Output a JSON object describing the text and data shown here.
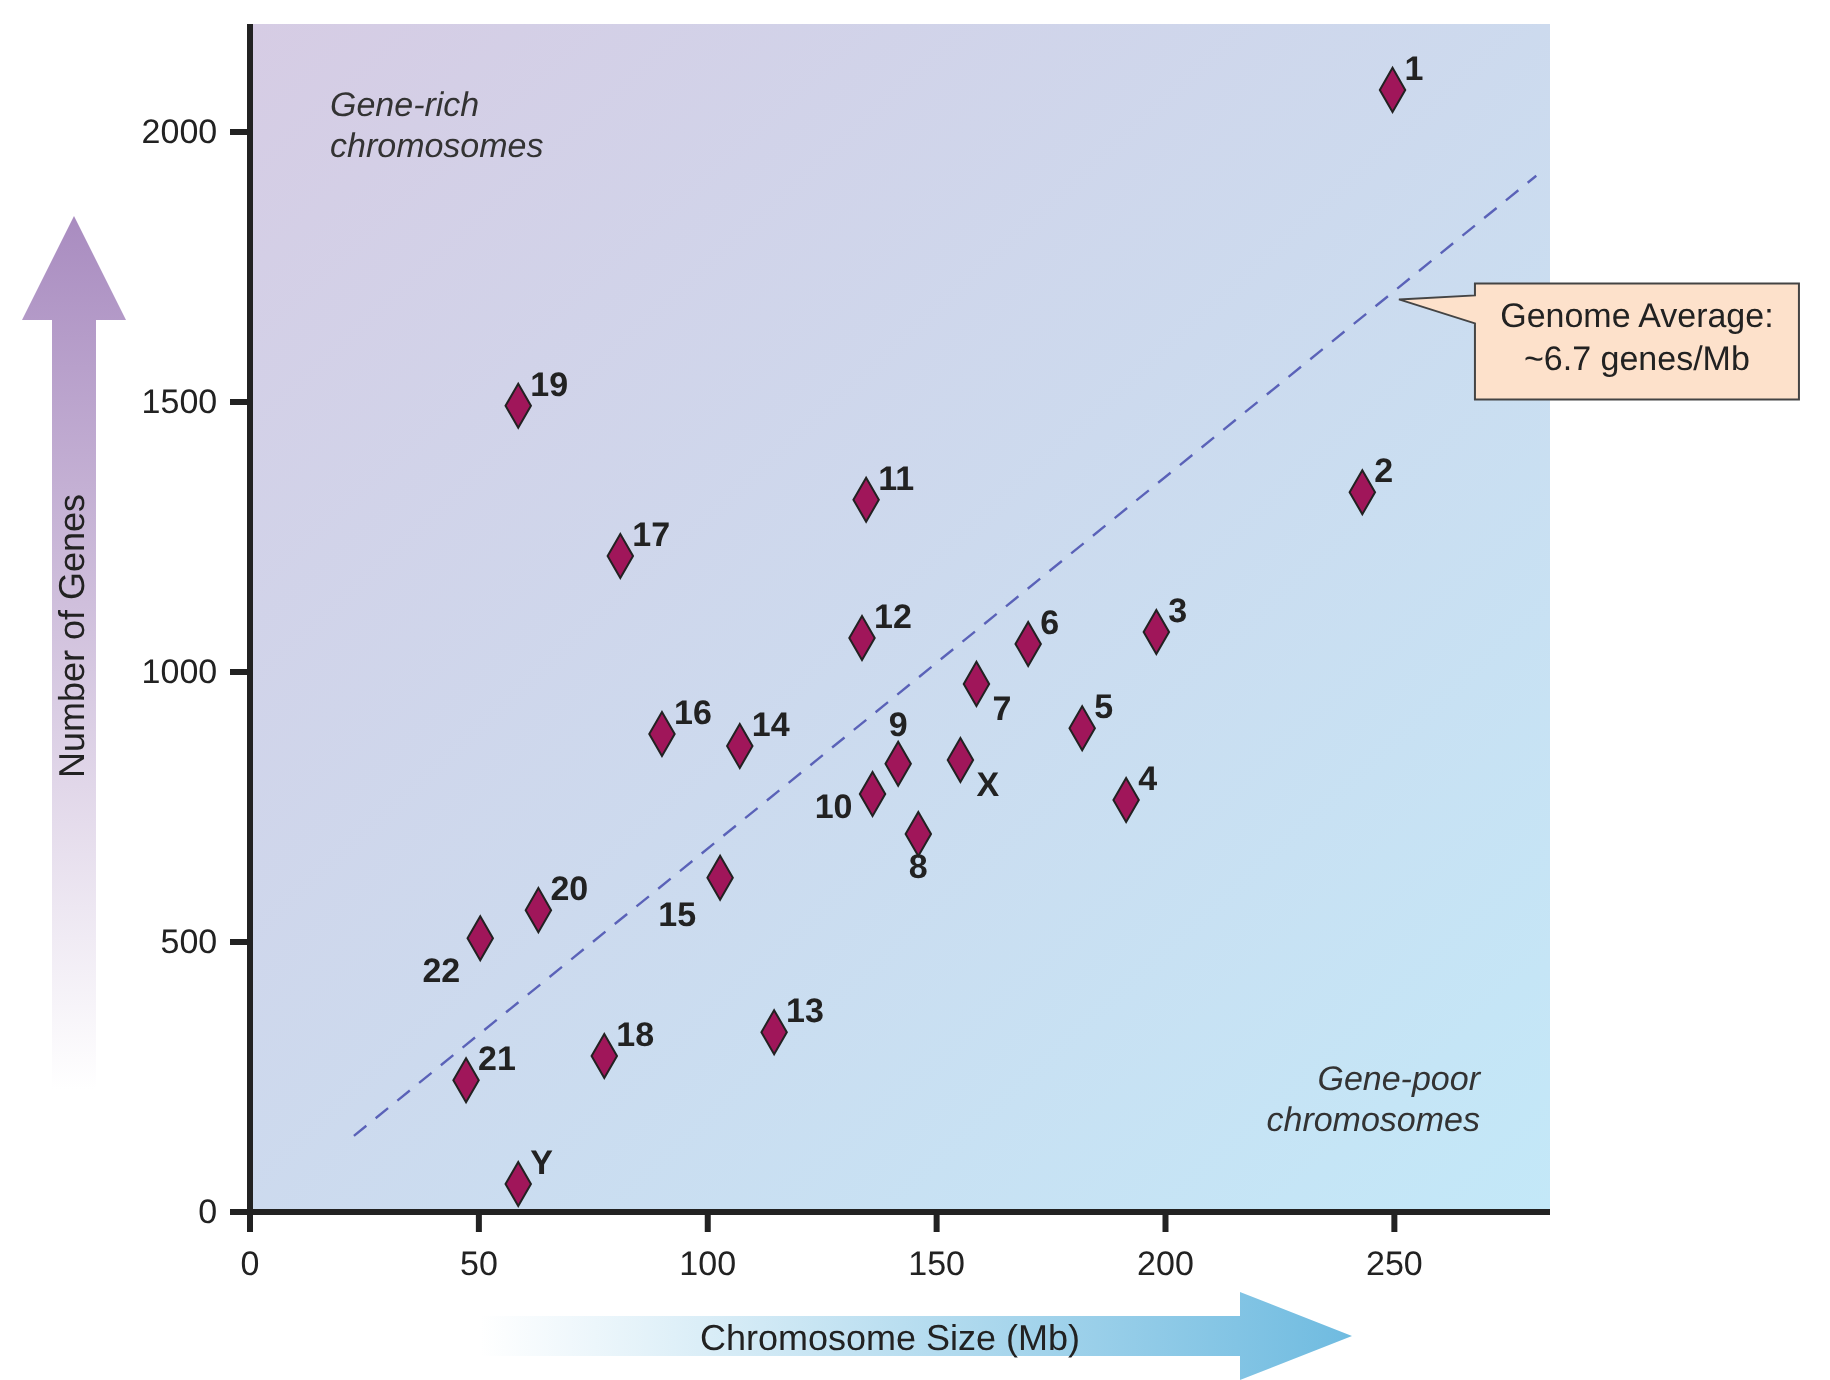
{
  "chart_data": {
    "type": "scatter",
    "xlabel": "Chromosome Size (Mb)",
    "ylabel": "Number of Genes",
    "xlim": [
      0,
      284
    ],
    "ylim": [
      0,
      2200
    ],
    "xticks": [
      0,
      50,
      100,
      150,
      200,
      250
    ],
    "yticks": [
      0,
      500,
      1000,
      1500,
      2000
    ],
    "grid": false,
    "marker": "diamond",
    "series": [
      {
        "color": "#a0165a",
        "x": [
          249.6,
          243,
          198,
          191.4,
          181.8,
          170,
          158.7,
          146,
          141.6,
          136,
          134.6,
          133.7,
          114.5,
          107,
          102.7,
          90,
          80.9,
          77.4,
          58.6,
          63,
          47.2,
          50.3,
          155.2,
          58.6
        ],
        "values": [
          2078,
          1333,
          1074,
          763,
          896,
          1052,
          978,
          700,
          830,
          774,
          1319,
          1063,
          333,
          863,
          619,
          885,
          1215,
          289,
          1493,
          559,
          244,
          507,
          837,
          52
        ]
      },
      {
        "type": "line",
        "color": "#5a62b8",
        "line_style": "dashed",
        "marker": "none",
        "x": [
          22.7,
          281
        ],
        "values": [
          141,
          1919
        ]
      }
    ],
    "annotations": [
      {
        "text": "1",
        "x": 249.6,
        "y": 2078
      },
      {
        "text": "2",
        "x": 243,
        "y": 1333
      },
      {
        "text": "3",
        "x": 198,
        "y": 1074
      },
      {
        "text": "4",
        "x": 191.4,
        "y": 763
      },
      {
        "text": "5",
        "x": 181.8,
        "y": 896
      },
      {
        "text": "6",
        "x": 170,
        "y": 1052
      },
      {
        "text": "7",
        "x": 158.7,
        "y": 978
      },
      {
        "text": "8",
        "x": 146,
        "y": 700
      },
      {
        "text": "9",
        "x": 141.6,
        "y": 830
      },
      {
        "text": "10",
        "x": 136,
        "y": 774
      },
      {
        "text": "11",
        "x": 134.6,
        "y": 1319
      },
      {
        "text": "12",
        "x": 133.7,
        "y": 1063
      },
      {
        "text": "13",
        "x": 114.5,
        "y": 333
      },
      {
        "text": "14",
        "x": 107,
        "y": 863
      },
      {
        "text": "15",
        "x": 102.7,
        "y": 619
      },
      {
        "text": "16",
        "x": 90,
        "y": 885
      },
      {
        "text": "17",
        "x": 80.9,
        "y": 1215
      },
      {
        "text": "18",
        "x": 77.4,
        "y": 289
      },
      {
        "text": "19",
        "x": 58.6,
        "y": 1493
      },
      {
        "text": "20",
        "x": 63,
        "y": 559
      },
      {
        "text": "21",
        "x": 47.2,
        "y": 244
      },
      {
        "text": "22",
        "x": 50.3,
        "y": 507
      },
      {
        "text": "X",
        "x": 155.2,
        "y": 837
      },
      {
        "text": "Y",
        "x": 58.6,
        "y": 52
      },
      {
        "text": "Genome Average:\n~6.7 genes/Mb",
        "x": 251,
        "y": 1690
      },
      "Gene-rich\nchromosomes",
      "Gene-poor\nchromosomes"
    ]
  }
}
